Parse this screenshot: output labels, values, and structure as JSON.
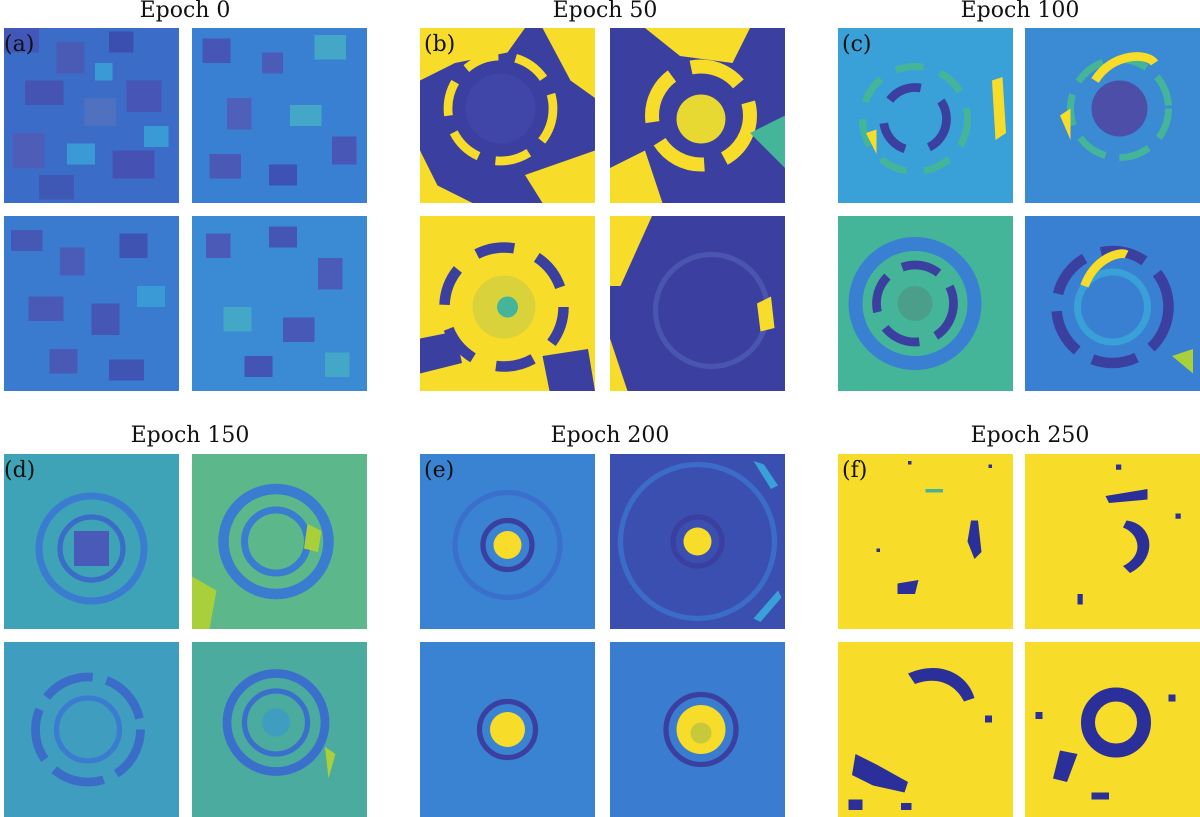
{
  "colormap": {
    "dark_purple": "#3b3fa0",
    "blue": "#2f6fd0",
    "light_blue": "#3aa0d8",
    "teal_green": "#45b59a",
    "yellow_green": "#a9d03a",
    "yellow": "#f7dc2a"
  },
  "panels": [
    {
      "label": "(a)",
      "title": "Epoch 0"
    },
    {
      "label": "(b)",
      "title": "Epoch 50"
    },
    {
      "label": "(c)",
      "title": "Epoch 100"
    },
    {
      "label": "(d)",
      "title": "Epoch 150"
    },
    {
      "label": "(e)",
      "title": "Epoch 200"
    },
    {
      "label": "(f)",
      "title": "Epoch 250"
    }
  ]
}
